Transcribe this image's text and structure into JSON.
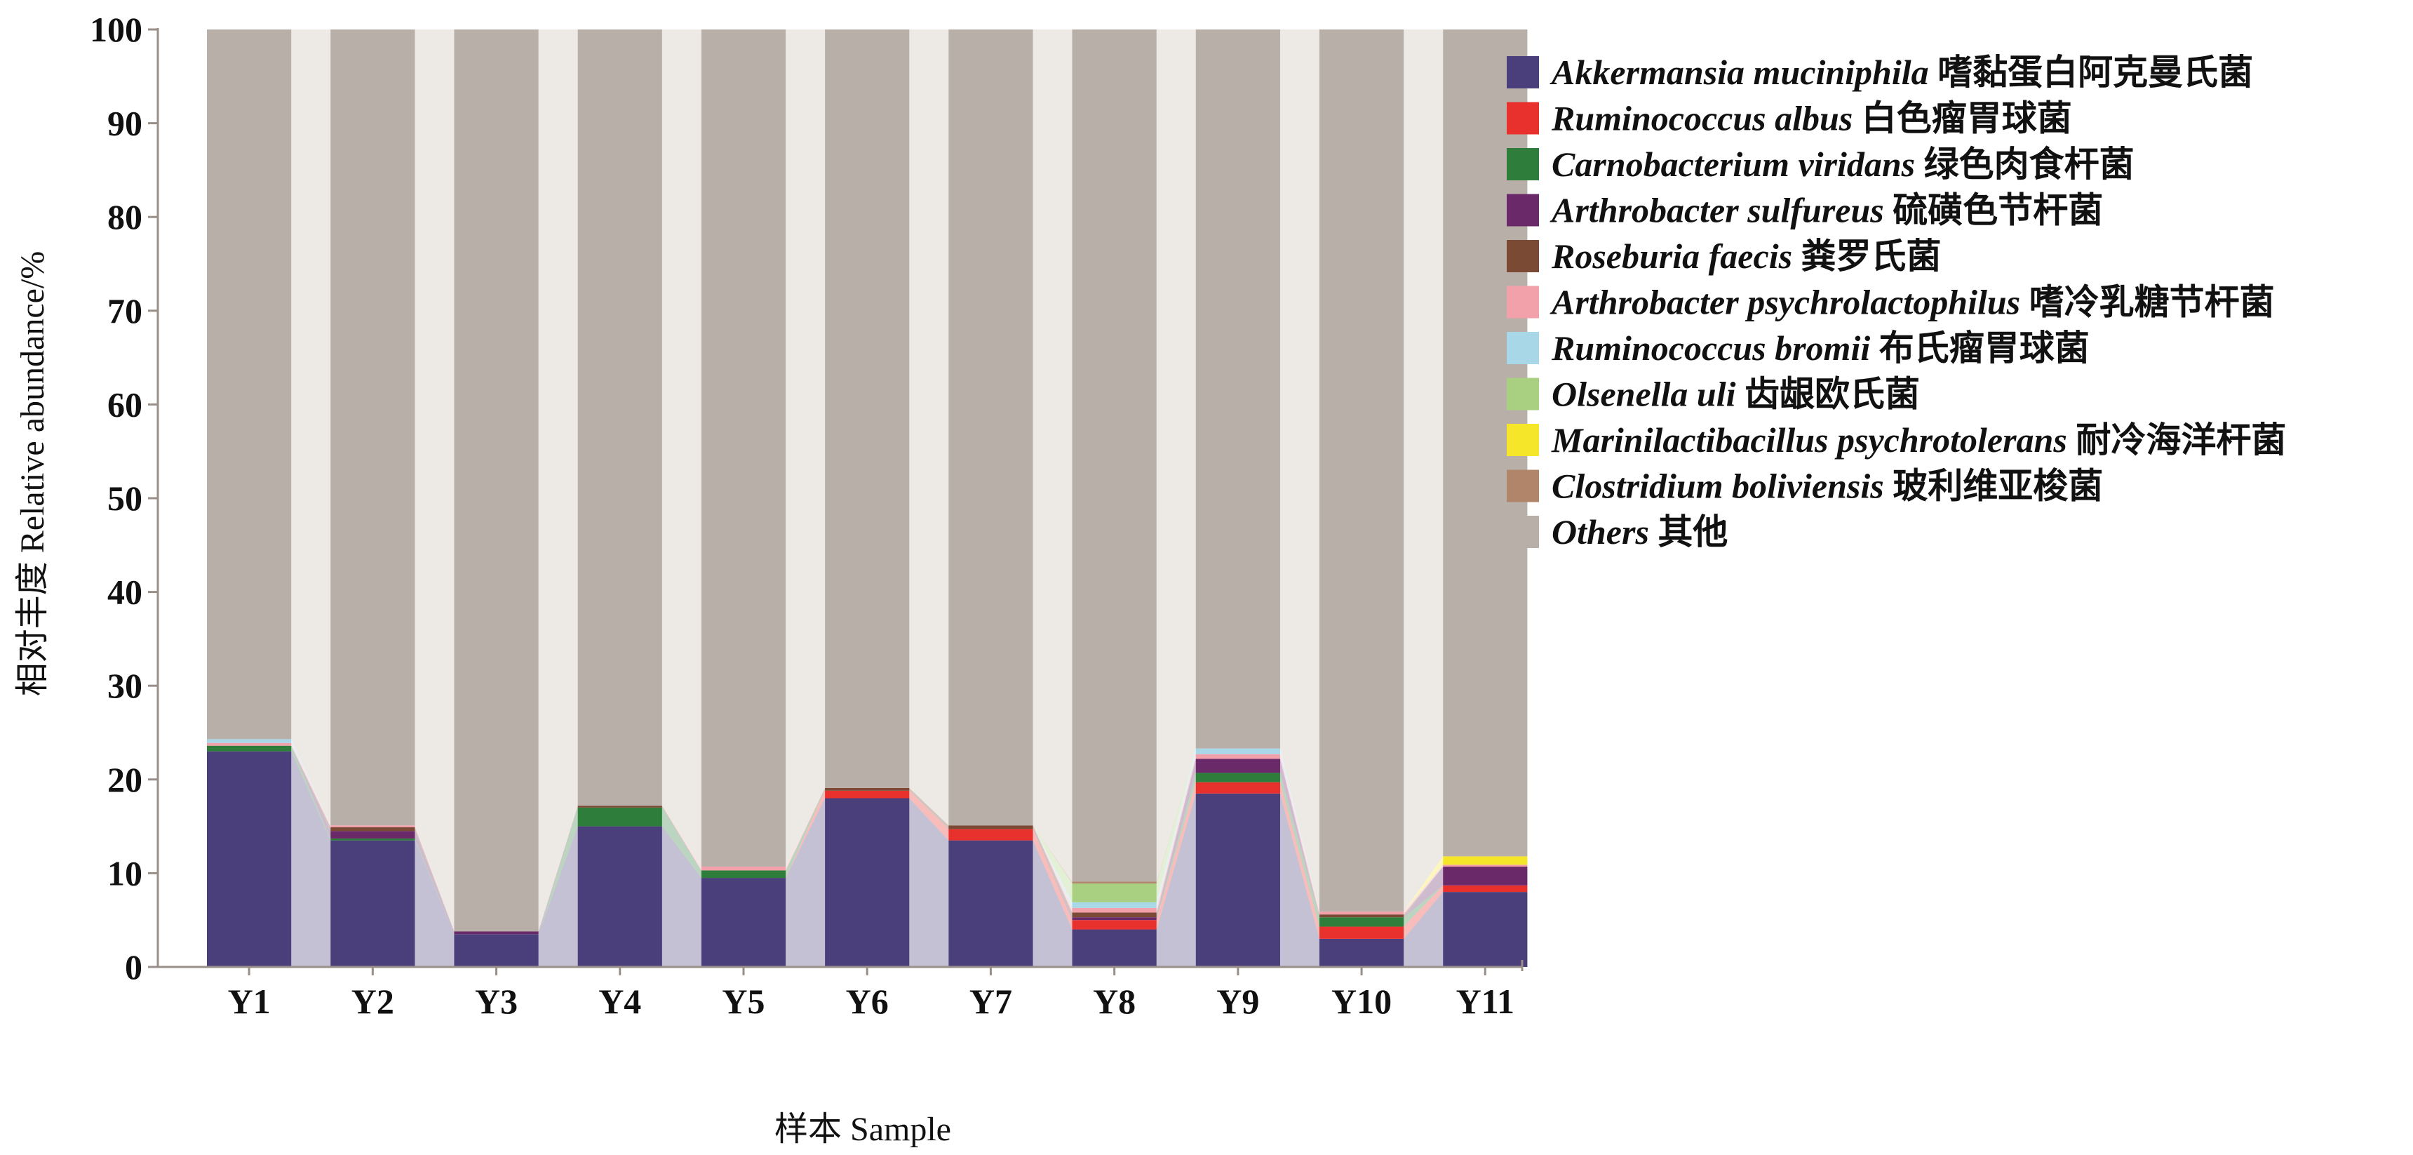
{
  "chart_data": {
    "type": "bar",
    "stacked": true,
    "categories": [
      "Y1",
      "Y2",
      "Y3",
      "Y4",
      "Y5",
      "Y6",
      "Y7",
      "Y8",
      "Y9",
      "Y10",
      "Y11"
    ],
    "xlabel": "样本 Sample",
    "ylabel": "相对丰度 Relative abundance/%",
    "ylim": [
      0,
      100
    ],
    "yticks": [
      "0",
      "10",
      "20",
      "30",
      "40",
      "50",
      "60",
      "70",
      "80",
      "90",
      "100"
    ],
    "grid": false,
    "legend_position": "right",
    "series": [
      {
        "name_italic": "Akkermansia muciniphila",
        "name_cn": "嗜黏蛋白阿克曼氏菌",
        "color": "#4a3f7a",
        "values": [
          23,
          13.5,
          3.5,
          15,
          9.5,
          18,
          13.5,
          4,
          18.5,
          3,
          8
        ]
      },
      {
        "name_italic": "Ruminococcus albus",
        "name_cn": "白色瘤胃球菌",
        "color": "#e8312d",
        "values": [
          0,
          0,
          0,
          0,
          0,
          0.8,
          1.2,
          1,
          1.2,
          1.3,
          0.7
        ]
      },
      {
        "name_italic": "Carnobacterium viridans",
        "name_cn": "绿色肉食杆菌",
        "color": "#2e7d3a",
        "values": [
          0.6,
          0.2,
          0,
          2,
          0.8,
          0,
          0,
          0,
          1,
          1,
          0
        ]
      },
      {
        "name_italic": "Arthrobacter  sulfureus",
        "name_cn": "硫磺色节杆菌",
        "color": "#6a2a6a",
        "values": [
          0,
          0.8,
          0.3,
          0,
          0,
          0,
          0,
          0.3,
          1.5,
          0,
          2
        ]
      },
      {
        "name_italic": "Roseburia faecis",
        "name_cn": "粪罗氏菌",
        "color": "#7a4a35",
        "values": [
          0,
          0.4,
          0,
          0.2,
          0,
          0.3,
          0.4,
          0.5,
          0,
          0.3,
          0
        ]
      },
      {
        "name_italic": "Arthrobacter psychrolactophilus",
        "name_cn": "嗜冷乳糖节杆菌",
        "color": "#f2a0aa",
        "values": [
          0.3,
          0.2,
          0,
          0,
          0.4,
          0,
          0,
          0.5,
          0.5,
          0.3,
          0.2
        ]
      },
      {
        "name_italic": "Ruminococcus bromii",
        "name_cn": "布氏瘤胃球菌",
        "color": "#a8d8e8",
        "values": [
          0.4,
          0,
          0,
          0,
          0,
          0,
          0,
          0.6,
          0.6,
          0,
          0
        ]
      },
      {
        "name_italic": "Olsenella uli",
        "name_cn": "齿龈欧氏菌",
        "color": "#a8d080",
        "values": [
          0,
          0,
          0,
          0,
          0,
          0,
          0,
          2,
          0,
          0,
          0
        ]
      },
      {
        "name_italic": "Marinilactibacillus psychrotolerans",
        "name_cn": "耐冷海洋杆菌",
        "color": "#f5e62a",
        "values": [
          0,
          0,
          0,
          0,
          0,
          0,
          0,
          0,
          0,
          0,
          0.9
        ]
      },
      {
        "name_italic": "Clostridium boliviensis",
        "name_cn": "玻利维亚梭菌",
        "color": "#b0856a",
        "values": [
          0,
          0,
          0,
          0,
          0,
          0,
          0,
          0.2,
          0,
          0,
          0
        ]
      },
      {
        "name_italic": "Others",
        "name_cn": "其他",
        "color": "#b8afa8",
        "values": [
          75.7,
          84.9,
          96.2,
          82.8,
          89.3,
          80.9,
          84.9,
          90.9,
          76.7,
          94.1,
          88.2
        ]
      }
    ]
  }
}
